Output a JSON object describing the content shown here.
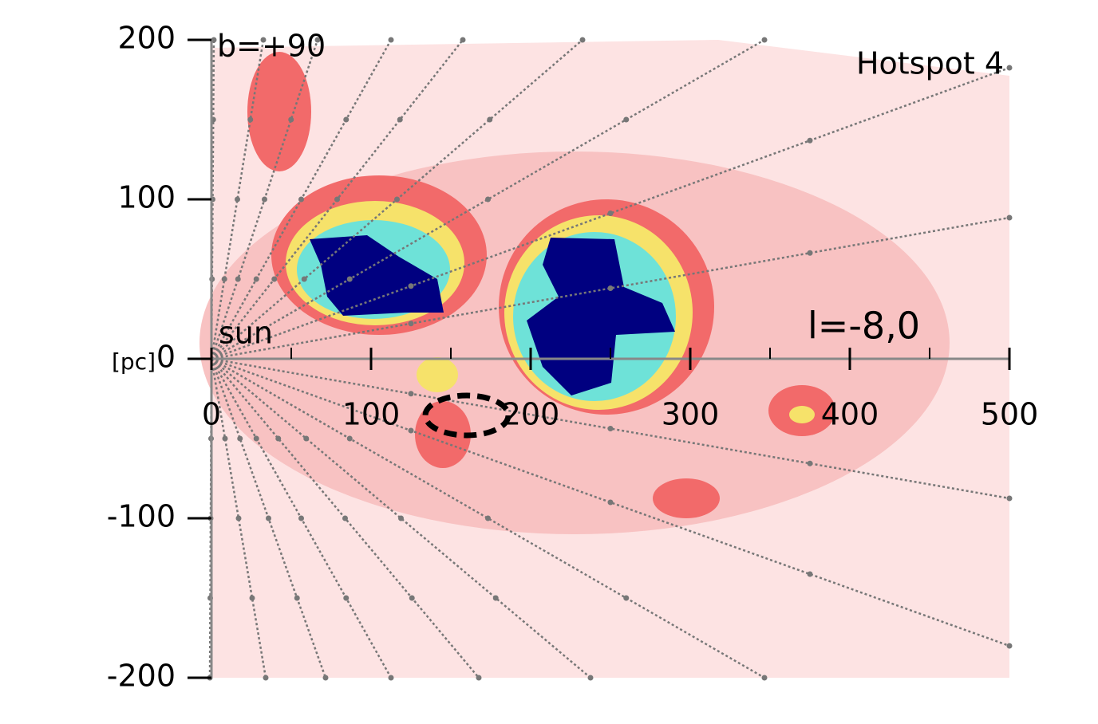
{
  "chart_data": {
    "type": "map",
    "title": "Hotspot 4",
    "annotations": [
      "b=+90",
      "l=-8,0",
      "sun"
    ],
    "ylabel": "[pc]",
    "xlim": [
      0,
      500
    ],
    "ylim": [
      -200,
      200
    ],
    "xticks": [
      0,
      100,
      200,
      300,
      400,
      500
    ],
    "yticks": [
      -200,
      -100,
      0,
      100,
      200
    ]
  }
}
